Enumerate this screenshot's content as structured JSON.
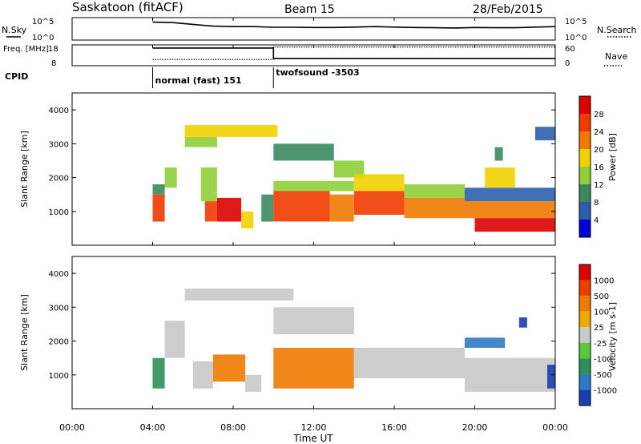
{
  "header": {
    "site": "Saskatoon (fitACF)",
    "beam": "Beam 15",
    "date": "28/Feb/2015"
  },
  "colors": {
    "power": [
      "#0000dd",
      "#2b5fad",
      "#3a8a5e",
      "#8fcf3a",
      "#f2d000",
      "#f07a00",
      "#f03a00",
      "#dd0000"
    ],
    "velocity": [
      "#1a3fb0",
      "#2f79c4",
      "#2e8f5a",
      "#5ac83a",
      "#c8c8c8",
      "#f0a800",
      "#f07a00",
      "#e84000",
      "#dd0000"
    ]
  },
  "chart_data": [
    {
      "type": "line",
      "name": "nsky-nsearch",
      "left_axis": {
        "label": "N.Sky",
        "ticks": [
          "10^5",
          "10^0"
        ]
      },
      "right_axis": {
        "label": "N.Search",
        "ticks": [
          "10^5",
          "10^0"
        ]
      },
      "x_range": [
        0,
        24
      ],
      "series": [
        {
          "name": "N.Sky",
          "x": [
            4,
            5,
            6,
            7,
            8,
            9,
            10,
            11,
            12,
            13,
            14,
            15,
            16,
            17,
            18,
            19,
            20,
            21,
            22,
            23,
            24
          ],
          "y": [
            0.8,
            0.78,
            0.7,
            0.62,
            0.6,
            0.6,
            0.57,
            0.57,
            0.56,
            0.56,
            0.58,
            0.6,
            0.58,
            0.56,
            0.55,
            0.54,
            0.56,
            0.55,
            0.55,
            0.58,
            0.6
          ]
        }
      ]
    },
    {
      "type": "line",
      "name": "freq-nave",
      "left_axis": {
        "label": "Freq. [MHz]",
        "ticks": [
          "18",
          "8"
        ]
      },
      "right_axis": {
        "label": "Nave",
        "ticks": [
          "60",
          "0"
        ]
      },
      "x_range": [
        0,
        24
      ],
      "series": [
        {
          "name": "Freq",
          "x": [
            4,
            10,
            10,
            24
          ],
          "y": [
            0.85,
            0.85,
            0.35,
            0.35
          ]
        },
        {
          "name": "Nave",
          "x": [
            4,
            10,
            10,
            24
          ],
          "y": [
            0.3,
            0.3,
            0.9,
            0.9
          ]
        }
      ],
      "cpid": {
        "label": "CPID",
        "segments": [
          {
            "label": "normal (fast) 151",
            "start": 4
          },
          {
            "label": "twofsound -3503",
            "start": 10
          }
        ]
      }
    },
    {
      "type": "heatmap",
      "name": "power",
      "ylabel": "Slant Range [km]",
      "yticks": [
        "4000",
        "3000",
        "2000",
        "1000"
      ],
      "colorbar": {
        "label": "Power [dB]",
        "ticks": [
          "28",
          "24",
          "20",
          "16",
          "12",
          "8",
          "4"
        ]
      },
      "regions": [
        {
          "t0": 4.0,
          "t1": 4.6,
          "r0": 700,
          "r1": 1500,
          "level": 6
        },
        {
          "t0": 4.0,
          "t1": 4.6,
          "r0": 1500,
          "r1": 1800,
          "level": 2
        },
        {
          "t0": 4.6,
          "t1": 5.2,
          "r0": 1700,
          "r1": 2300,
          "level": 3
        },
        {
          "t0": 5.6,
          "t1": 10.2,
          "r0": 3200,
          "r1": 3550,
          "level": 4
        },
        {
          "t0": 5.6,
          "t1": 7.2,
          "r0": 2900,
          "r1": 3200,
          "level": 3
        },
        {
          "t0": 6.4,
          "t1": 7.2,
          "r0": 1300,
          "r1": 2300,
          "level": 3
        },
        {
          "t0": 6.6,
          "t1": 7.2,
          "r0": 700,
          "r1": 1300,
          "level": 6
        },
        {
          "t0": 7.2,
          "t1": 8.4,
          "r0": 700,
          "r1": 1400,
          "level": 7
        },
        {
          "t0": 8.4,
          "t1": 9.0,
          "r0": 500,
          "r1": 1000,
          "level": 4
        },
        {
          "t0": 9.4,
          "t1": 10.0,
          "r0": 700,
          "r1": 1500,
          "level": 2
        },
        {
          "t0": 10.0,
          "t1": 14.0,
          "r0": 1600,
          "r1": 1900,
          "level": 3
        },
        {
          "t0": 10.0,
          "t1": 12.8,
          "r0": 700,
          "r1": 1600,
          "level": 6
        },
        {
          "t0": 12.8,
          "t1": 14.0,
          "r0": 700,
          "r1": 1500,
          "level": 5
        },
        {
          "t0": 10.0,
          "t1": 13.0,
          "r0": 2500,
          "r1": 3000,
          "level": 2
        },
        {
          "t0": 13.0,
          "t1": 14.5,
          "r0": 2000,
          "r1": 2500,
          "level": 3
        },
        {
          "t0": 14.0,
          "t1": 16.5,
          "r0": 1600,
          "r1": 2100,
          "level": 4
        },
        {
          "t0": 14.0,
          "t1": 16.5,
          "r0": 900,
          "r1": 1600,
          "level": 6
        },
        {
          "t0": 16.5,
          "t1": 19.5,
          "r0": 1400,
          "r1": 1800,
          "level": 3
        },
        {
          "t0": 16.5,
          "t1": 19.5,
          "r0": 800,
          "r1": 1400,
          "level": 5
        },
        {
          "t0": 19.5,
          "t1": 24.0,
          "r0": 1300,
          "r1": 1700,
          "level": 1
        },
        {
          "t0": 19.5,
          "t1": 24.0,
          "r0": 800,
          "r1": 1300,
          "level": 5
        },
        {
          "t0": 20.0,
          "t1": 24.0,
          "r0": 400,
          "r1": 800,
          "level": 7
        },
        {
          "t0": 20.5,
          "t1": 22.0,
          "r0": 1700,
          "r1": 2300,
          "level": 4
        },
        {
          "t0": 21.0,
          "t1": 21.4,
          "r0": 2500,
          "r1": 2900,
          "level": 2
        },
        {
          "t0": 23.0,
          "t1": 24.0,
          "r0": 3100,
          "r1": 3500,
          "level": 1
        }
      ]
    },
    {
      "type": "heatmap",
      "name": "velocity",
      "ylabel": "Slant Range [km]",
      "yticks": [
        "4000",
        "3000",
        "2000",
        "1000"
      ],
      "colorbar": {
        "label": "Velocity [m s-1]",
        "ticks": [
          "1000",
          "500",
          "100",
          "25",
          "-25",
          "-100",
          "-500",
          "-1000"
        ]
      },
      "regions": [
        {
          "t0": 4.0,
          "t1": 4.6,
          "r0": 600,
          "r1": 1500,
          "level": 2
        },
        {
          "t0": 4.6,
          "t1": 5.6,
          "r0": 1500,
          "r1": 2600,
          "level": 4
        },
        {
          "t0": 5.6,
          "t1": 11.0,
          "r0": 3200,
          "r1": 3550,
          "level": 4
        },
        {
          "t0": 6.0,
          "t1": 7.0,
          "r0": 600,
          "r1": 1400,
          "level": 4
        },
        {
          "t0": 7.0,
          "t1": 8.6,
          "r0": 800,
          "r1": 1600,
          "level": 6
        },
        {
          "t0": 8.6,
          "t1": 9.4,
          "r0": 500,
          "r1": 1000,
          "level": 4
        },
        {
          "t0": 10.0,
          "t1": 14.0,
          "r0": 600,
          "r1": 1800,
          "level": 6
        },
        {
          "t0": 10.0,
          "t1": 14.0,
          "r0": 2200,
          "r1": 3000,
          "level": 4
        },
        {
          "t0": 14.0,
          "t1": 19.5,
          "r0": 900,
          "r1": 1800,
          "level": 4
        },
        {
          "t0": 19.5,
          "t1": 24.0,
          "r0": 500,
          "r1": 1500,
          "level": 4
        },
        {
          "t0": 19.5,
          "t1": 21.5,
          "r0": 1800,
          "r1": 2100,
          "level": 1
        },
        {
          "t0": 23.6,
          "t1": 24.0,
          "r0": 600,
          "r1": 1300,
          "level": 0
        },
        {
          "t0": 22.2,
          "t1": 22.6,
          "r0": 2400,
          "r1": 2700,
          "level": 0
        }
      ]
    }
  ],
  "xaxis": {
    "ticks": [
      "00:00",
      "04:00",
      "08:00",
      "12:00",
      "16:00",
      "20:00",
      "00:00"
    ],
    "label": "Time UT"
  }
}
